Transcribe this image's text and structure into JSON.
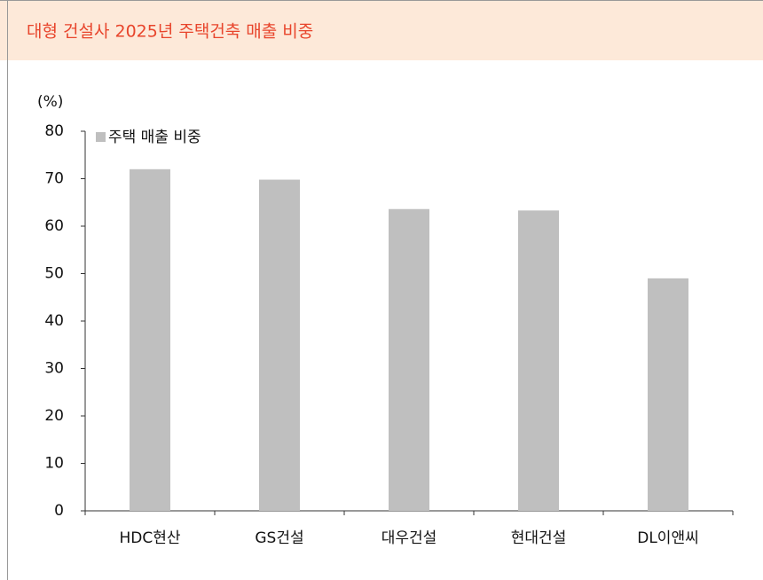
{
  "chart_data": {
    "type": "bar",
    "title": "대형 건설사 2025년 주택건축 매출 비중",
    "y_label": "(%)",
    "categories": [
      "HDC현산",
      "GS건설",
      "대우건설",
      "현대건설",
      "DL이앤씨"
    ],
    "series": [
      {
        "name": "주택 매출 비중",
        "color": "#bfbfbf",
        "values": [
          72,
          69.8,
          63.6,
          63.3,
          49
        ]
      }
    ],
    "ylim": [
      0,
      80
    ],
    "yticks": [
      0,
      10,
      20,
      30,
      40,
      50,
      60,
      70,
      80
    ],
    "grid": false,
    "legend": "top-left"
  }
}
